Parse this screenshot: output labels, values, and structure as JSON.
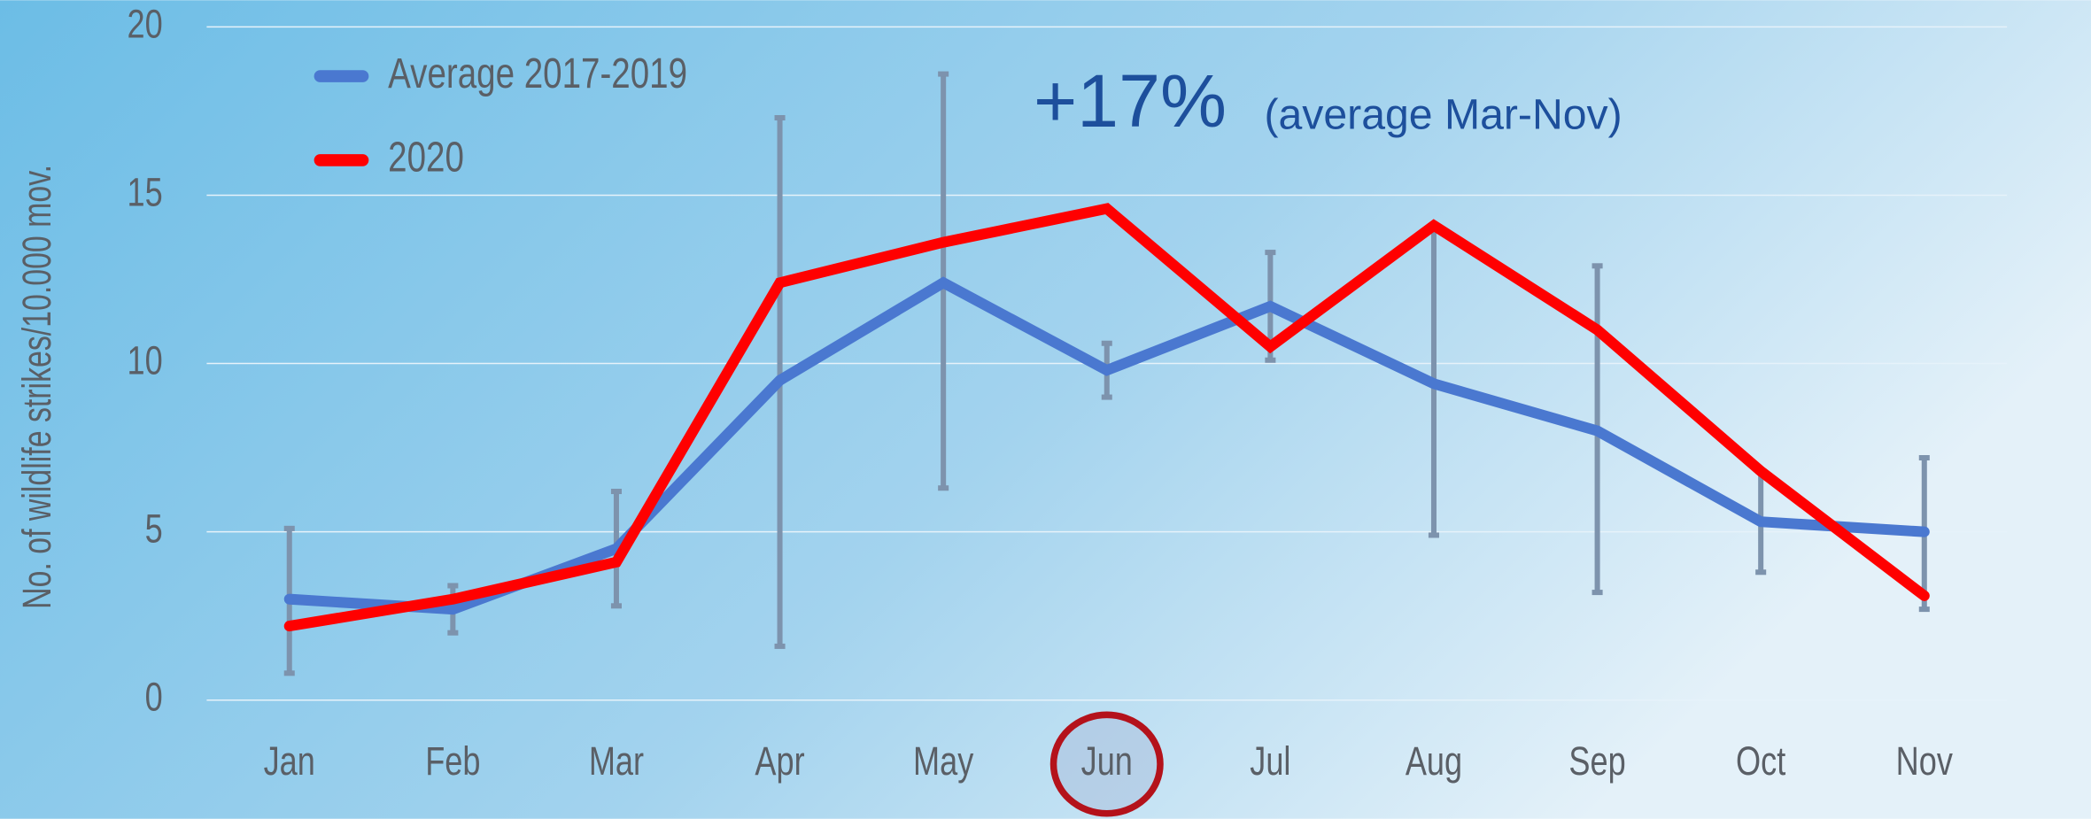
{
  "chart_data": {
    "type": "line",
    "y_label": "No. of wildlife strikes/10.000 mov.",
    "annotation_main": "+17%",
    "annotation_sub": "(average Mar-Nov)",
    "categories": [
      "Jan",
      "Feb",
      "Mar",
      "Apr",
      "May",
      "Jun",
      "Jul",
      "Aug",
      "Sep",
      "Oct",
      "Nov"
    ],
    "highlight": "Jun",
    "series": [
      {
        "name": "Average 2017-2019",
        "color": "#4a78d0",
        "values": [
          3.0,
          2.7,
          4.5,
          9.5,
          12.4,
          9.8,
          11.7,
          9.4,
          8.0,
          5.3,
          5.0
        ],
        "error_bars": [
          [
            0.8,
            5.1
          ],
          [
            2.0,
            3.4
          ],
          [
            2.8,
            6.2
          ],
          [
            1.6,
            17.3
          ],
          [
            6.3,
            18.6
          ],
          [
            9.0,
            10.6
          ],
          [
            10.1,
            13.3
          ],
          [
            4.9,
            14.0
          ],
          [
            3.2,
            12.9
          ],
          [
            3.8,
            6.8
          ],
          [
            2.7,
            7.2
          ]
        ]
      },
      {
        "name": "2020",
        "color": "#ff0000",
        "values": [
          2.2,
          3.0,
          4.1,
          12.4,
          13.6,
          14.6,
          10.5,
          14.1,
          11.0,
          6.8,
          3.1
        ]
      }
    ],
    "ylim": [
      0,
      20
    ],
    "yticks": [
      0,
      5,
      10,
      15,
      20
    ],
    "grid": true
  }
}
